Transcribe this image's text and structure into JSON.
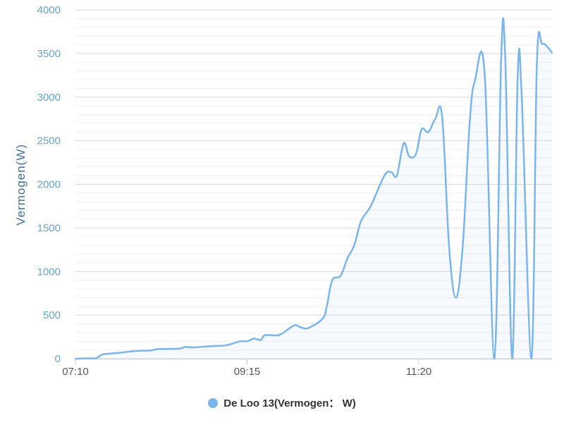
{
  "chart_data": {
    "type": "area",
    "ylabel": "Vermogen(W)",
    "ylim": [
      0,
      4000
    ],
    "yticks": [
      0,
      500,
      1000,
      1500,
      2000,
      2500,
      3000,
      3500,
      4000
    ],
    "xticks": [
      "07:10",
      "09:15",
      "11:20"
    ],
    "x_range": [
      "07:10",
      "12:57"
    ],
    "grid": true,
    "legend_position": "bottom-center",
    "series": [
      {
        "name": "De Loo 13(Vermogen： W)",
        "color": "#7cb5ec",
        "points": [
          [
            "07:10",
            0
          ],
          [
            "07:20",
            5
          ],
          [
            "07:25",
            5
          ],
          [
            "07:30",
            50
          ],
          [
            "07:40",
            65
          ],
          [
            "07:55",
            90
          ],
          [
            "08:05",
            95
          ],
          [
            "08:10",
            110
          ],
          [
            "08:25",
            115
          ],
          [
            "08:30",
            135
          ],
          [
            "08:35",
            130
          ],
          [
            "08:50",
            145
          ],
          [
            "09:00",
            155
          ],
          [
            "09:10",
            200
          ],
          [
            "09:15",
            200
          ],
          [
            "09:20",
            230
          ],
          [
            "09:25",
            215
          ],
          [
            "09:28",
            270
          ],
          [
            "09:38",
            270
          ],
          [
            "09:45",
            340
          ],
          [
            "09:50",
            385
          ],
          [
            "09:55",
            355
          ],
          [
            "10:00",
            355
          ],
          [
            "10:10",
            460
          ],
          [
            "10:13",
            600
          ],
          [
            "10:17",
            900
          ],
          [
            "10:23",
            950
          ],
          [
            "10:28",
            1150
          ],
          [
            "10:33",
            1300
          ],
          [
            "10:38",
            1580
          ],
          [
            "10:45",
            1750
          ],
          [
            "10:55",
            2100
          ],
          [
            "11:00",
            2140
          ],
          [
            "11:04",
            2100
          ],
          [
            "11:09",
            2470
          ],
          [
            "11:13",
            2320
          ],
          [
            "11:18",
            2350
          ],
          [
            "11:22",
            2630
          ],
          [
            "11:27",
            2600
          ],
          [
            "11:32",
            2750
          ],
          [
            "11:37",
            2780
          ],
          [
            "11:42",
            1300
          ],
          [
            "11:47",
            700
          ],
          [
            "11:52",
            1300
          ],
          [
            "11:57",
            2700
          ],
          [
            "12:01",
            3200
          ],
          [
            "12:08",
            3260
          ],
          [
            "12:15",
            0
          ],
          [
            "12:20",
            3460
          ],
          [
            "12:23",
            3420
          ],
          [
            "12:28",
            0
          ],
          [
            "12:32",
            3240
          ],
          [
            "12:35",
            3000
          ],
          [
            "12:42",
            0
          ],
          [
            "12:46",
            3400
          ],
          [
            "12:50",
            3610
          ],
          [
            "12:57",
            3510
          ]
        ]
      }
    ]
  }
}
